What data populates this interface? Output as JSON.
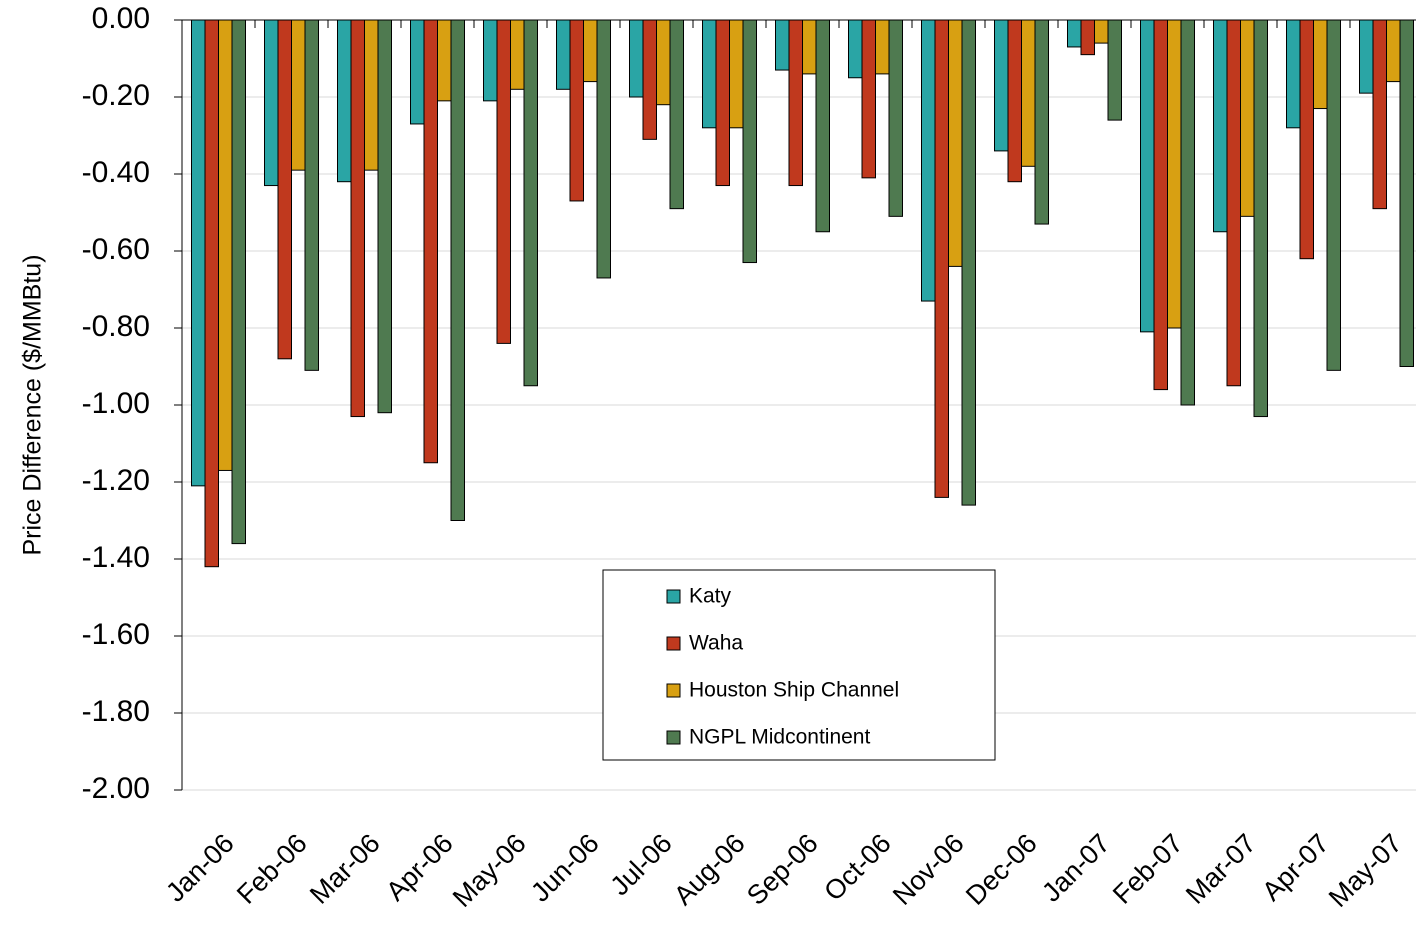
{
  "chart_data": {
    "type": "bar",
    "y_label": "Price Difference ($/MMBtu)",
    "categories": [
      "Jan-06",
      "Feb-06",
      "Mar-06",
      "Apr-06",
      "May-06",
      "Jun-06",
      "Jul-06",
      "Aug-06",
      "Sep-06",
      "Oct-06",
      "Nov-06",
      "Dec-06",
      "Jan-07",
      "Feb-07",
      "Mar-07",
      "Apr-07",
      "May-07"
    ],
    "series": [
      {
        "name": "Katy",
        "color": "#2aa5a5",
        "values": [
          -1.21,
          -0.43,
          -0.42,
          -0.27,
          -0.21,
          -0.18,
          -0.2,
          -0.28,
          -0.13,
          -0.15,
          -0.73,
          -0.34,
          -0.07,
          -0.81,
          -0.55,
          -0.28,
          -0.19
        ]
      },
      {
        "name": "Waha",
        "color": "#c0391e",
        "values": [
          -1.42,
          -0.88,
          -1.03,
          -1.15,
          -0.84,
          -0.47,
          -0.31,
          -0.43,
          -0.43,
          -0.41,
          -1.24,
          -0.42,
          -0.09,
          -0.96,
          -0.95,
          -0.62,
          -0.49
        ]
      },
      {
        "name": "Houston Ship Channel",
        "color": "#d8a012",
        "values": [
          -1.17,
          -0.39,
          -0.39,
          -0.21,
          -0.18,
          -0.16,
          -0.22,
          -0.28,
          -0.14,
          -0.14,
          -0.64,
          -0.38,
          -0.06,
          -0.8,
          -0.51,
          -0.23,
          -0.16
        ]
      },
      {
        "name": "NGPL Midcontinent",
        "color": "#4f7a50",
        "values": [
          -1.36,
          -0.91,
          -1.02,
          -1.3,
          -0.95,
          -0.67,
          -0.49,
          -0.63,
          -0.55,
          -0.51,
          -1.26,
          -0.53,
          -0.26,
          -1.0,
          -1.03,
          -0.91,
          -0.9
        ]
      }
    ],
    "ylim": [
      -2,
      0
    ],
    "yticks": [
      {
        "value": 0,
        "label": "0.00"
      },
      {
        "value": -0.2,
        "label": "-0.20"
      },
      {
        "value": -0.4,
        "label": "-0.40"
      },
      {
        "value": -0.6,
        "label": "-0.60"
      },
      {
        "value": -0.8,
        "label": "-0.80"
      },
      {
        "value": -1,
        "label": "-1.00"
      },
      {
        "value": -1.2,
        "label": "-1.20"
      },
      {
        "value": -1.4,
        "label": "-1.40"
      },
      {
        "value": -1.6,
        "label": "-1.60"
      },
      {
        "value": -1.8,
        "label": "-1.80"
      },
      {
        "value": -2,
        "label": "-2.00"
      }
    ],
    "grid": true
  }
}
